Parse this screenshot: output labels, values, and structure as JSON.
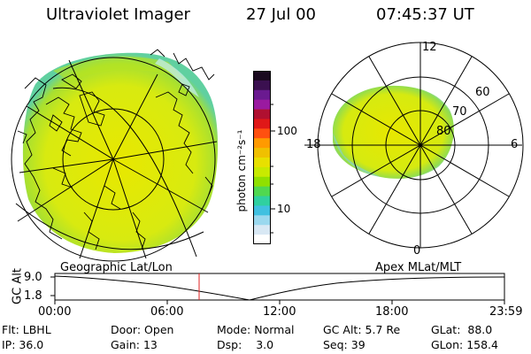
{
  "header": {
    "title": "Ultraviolet Imager",
    "date": "27 Jul 00",
    "time": "07:45:37 UT"
  },
  "colorbar": {
    "ticks": [
      "100",
      "10"
    ],
    "unit_label": "photon cm⁻²s⁻¹",
    "colors": [
      "#1a0a1f",
      "#3b1050",
      "#6a1a90",
      "#9a1aa0",
      "#b01030",
      "#e01818",
      "#ff5010",
      "#ff9a00",
      "#f0c000",
      "#e8e000",
      "#c8ea00",
      "#90e000",
      "#50d850",
      "#30d0a0",
      "#40c0e0",
      "#9ad8ee",
      "#d8e8f4",
      "#ffffff"
    ]
  },
  "left_map": {
    "label": "Geographic Lat/Lon"
  },
  "right_map": {
    "label": "Apex MLat/MLT",
    "mlt_labels": {
      "top": "12",
      "left": "18",
      "right": "6",
      "bottom": "0"
    },
    "lat_labels": [
      "60",
      "70",
      "80"
    ]
  },
  "altitude_plot": {
    "axis_label": "GC Alt",
    "y_ticks": [
      "9.0",
      "1.8"
    ],
    "x_ticks": [
      "00:00",
      "06:00",
      "12:00",
      "18:00",
      "23:59"
    ]
  },
  "info": {
    "filter": {
      "label": "Flt:",
      "value": "LBHL"
    },
    "ip": {
      "label": "IP:",
      "value": "36.0"
    },
    "door": {
      "label": "Door:",
      "value": "Open"
    },
    "gain": {
      "label": "Gain:",
      "value": "13"
    },
    "mode": {
      "label": "Mode:",
      "value": "Normal"
    },
    "dsp": {
      "label": "Dsp:",
      "value": "3.0"
    },
    "gc_alt": {
      "label": "GC Alt:",
      "value": "5.7 Re"
    },
    "seq": {
      "label": "Seq:",
      "value": "39"
    },
    "glat": {
      "label": "GLat:",
      "value": "88.0"
    },
    "glon": {
      "label": "GLon:",
      "value": "158.4"
    }
  }
}
